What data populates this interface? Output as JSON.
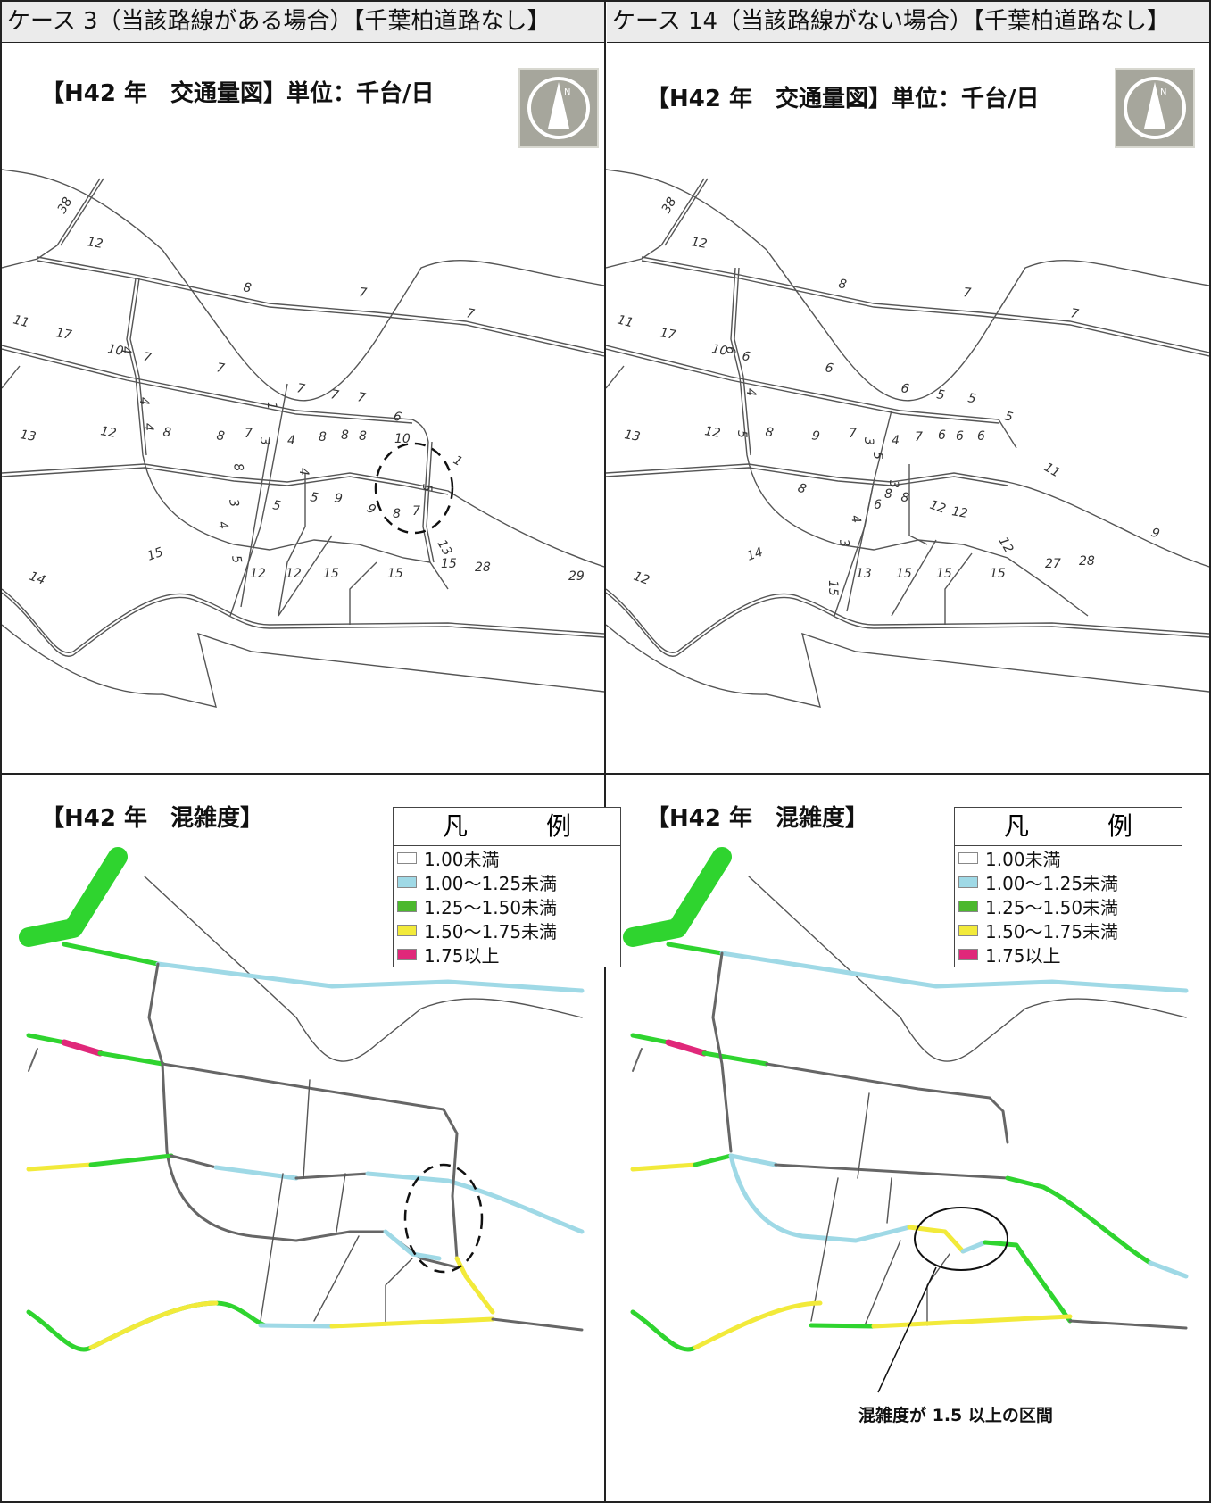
{
  "headers": {
    "left": "ケース 3（当該路線がある場合）【千葉柏道路なし】",
    "right": "ケース 14（当該路線がない場合）【千葉柏道路なし】"
  },
  "panels": {
    "volume_title": "【H42 年　交通量図】単位：千台/日",
    "congestion_title": "【H42 年　混雑度】"
  },
  "north_arrow": {
    "icon": "north-arrow-icon",
    "letter": "N"
  },
  "legend": {
    "title": "凡　例",
    "items": [
      {
        "label": "1.00未満",
        "color": "#ffffff"
      },
      {
        "label": "1.00～1.25未満",
        "color": "#9fd9e6"
      },
      {
        "label": "1.25～1.50未満",
        "color": "#4cb82e"
      },
      {
        "label": "1.50～1.75未満",
        "color": "#f2ea3a"
      },
      {
        "label": "1.75以上",
        "color": "#e0287a"
      }
    ]
  },
  "annotation": "混雑度が 1.5 以上の区間",
  "volume_labels": {
    "left": [
      "38",
      "12",
      "8",
      "7",
      "7",
      "11",
      "17",
      "10",
      "7",
      "7",
      "7",
      "7",
      "7",
      "6",
      "4",
      "4",
      "4",
      "1",
      "13",
      "12",
      "8",
      "8",
      "7",
      "3",
      "4",
      "8",
      "8",
      "8",
      "10",
      "1",
      "4",
      "8",
      "3",
      "5",
      "5",
      "9",
      "9",
      "8",
      "7",
      "5",
      "4",
      "5",
      "13",
      "15",
      "14",
      "12",
      "12",
      "15",
      "15",
      "15",
      "28",
      "29"
    ],
    "right": [
      "38",
      "12",
      "8",
      "7",
      "7",
      "11",
      "17",
      "10",
      "6",
      "6",
      "6",
      "5",
      "5",
      "5",
      "6",
      "4",
      "5",
      "13",
      "12",
      "8",
      "9",
      "7",
      "3",
      "4",
      "7",
      "6",
      "6",
      "6",
      "11",
      "8",
      "5",
      "3",
      "8",
      "8",
      "6",
      "12",
      "12",
      "9",
      "12",
      "4",
      "3",
      "15",
      "14",
      "12",
      "13",
      "15",
      "15",
      "15",
      "27",
      "28"
    ]
  },
  "colors": {
    "green": "#2fd42f",
    "cyan": "#9fd9e6",
    "yellow": "#f2ea3a",
    "magenta": "#e0287a",
    "road": "#555555"
  }
}
